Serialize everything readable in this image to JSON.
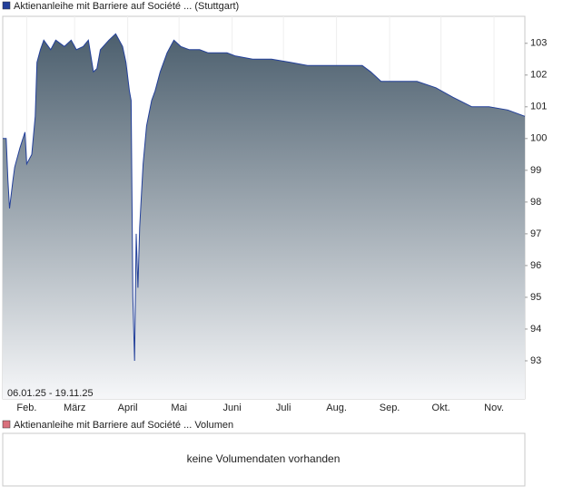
{
  "chart_data": [
    {
      "type": "area",
      "date_range": "06.01.25 - 19.11.25",
      "series": [
        {
          "name": "Aktienanleihe mit Barriere auf Société ... (Stuttgart)",
          "color": "#23409a",
          "x": [
            "2025-01-18",
            "2025-01-20",
            "2025-01-21",
            "2025-01-22",
            "2025-01-24",
            "2025-01-25",
            "2025-01-28",
            "2025-01-31",
            "2025-02-01",
            "2025-02-04",
            "2025-02-06",
            "2025-02-07",
            "2025-02-09",
            "2025-02-11",
            "2025-02-15",
            "2025-02-18",
            "2025-02-23",
            "2025-02-27",
            "2025-03-02",
            "2025-03-06",
            "2025-03-09",
            "2025-03-12",
            "2025-03-14",
            "2025-03-16",
            "2025-03-21",
            "2025-03-25",
            "2025-03-29",
            "2025-03-31",
            "2025-04-02",
            "2025-04-03",
            "2025-04-04",
            "2025-04-05",
            "2025-04-06",
            "2025-04-07",
            "2025-04-08",
            "2025-04-10",
            "2025-04-12",
            "2025-04-15",
            "2025-04-17",
            "2025-04-20",
            "2025-04-24",
            "2025-04-28",
            "2025-05-02",
            "2025-05-07",
            "2025-05-13",
            "2025-05-18",
            "2025-05-23",
            "2025-05-29",
            "2025-06-03",
            "2025-06-13",
            "2025-06-24",
            "2025-07-05",
            "2025-07-15",
            "2025-07-26",
            "2025-08-05",
            "2025-08-16",
            "2025-08-21",
            "2025-08-27",
            "2025-09-06",
            "2025-09-17",
            "2025-09-28",
            "2025-10-08",
            "2025-10-19",
            "2025-10-29",
            "2025-11-09",
            "2025-11-19"
          ],
          "values": [
            100.0,
            100.0,
            98.7,
            97.8,
            98.7,
            99.1,
            99.7,
            100.2,
            99.2,
            99.5,
            100.7,
            102.4,
            102.8,
            103.1,
            102.8,
            103.1,
            102.9,
            103.1,
            102.8,
            102.9,
            103.1,
            102.1,
            102.2,
            102.8,
            103.1,
            103.3,
            102.9,
            102.4,
            101.5,
            101.2,
            95.0,
            93.0,
            97.0,
            95.3,
            97.2,
            99.2,
            100.4,
            101.2,
            101.5,
            102.1,
            102.7,
            103.1,
            102.9,
            102.8,
            102.8,
            102.7,
            102.7,
            102.7,
            102.6,
            102.5,
            102.5,
            102.4,
            102.3,
            102.3,
            102.3,
            102.3,
            102.1,
            101.8,
            101.8,
            101.8,
            101.6,
            101.3,
            101.0,
            101.0,
            100.9,
            100.7
          ]
        }
      ],
      "xlim": [
        "2025-01-18",
        "2025-11-19"
      ],
      "xticks": [
        {
          "value": "2025-02-01",
          "label": "Feb."
        },
        {
          "value": "2025-03-01",
          "label": "März"
        },
        {
          "value": "2025-04-01",
          "label": "April"
        },
        {
          "value": "2025-05-01",
          "label": "Mai"
        },
        {
          "value": "2025-06-01",
          "label": "Juni"
        },
        {
          "value": "2025-07-01",
          "label": "Juli"
        },
        {
          "value": "2025-08-01",
          "label": "Aug."
        },
        {
          "value": "2025-09-01",
          "label": "Sep."
        },
        {
          "value": "2025-10-01",
          "label": "Okt."
        },
        {
          "value": "2025-11-01",
          "label": "Nov."
        }
      ],
      "ylim": [
        91.8,
        103.85
      ],
      "yticks": [
        93,
        94,
        95,
        96,
        97,
        98,
        99,
        100,
        101,
        102,
        103
      ],
      "grid": true
    },
    {
      "type": "empty",
      "series": [
        {
          "name": "Aktienanleihe mit Barriere auf Société ... Volumen",
          "color": "#d9707c"
        }
      ],
      "message": "keine Volumendaten vorhanden"
    }
  ]
}
